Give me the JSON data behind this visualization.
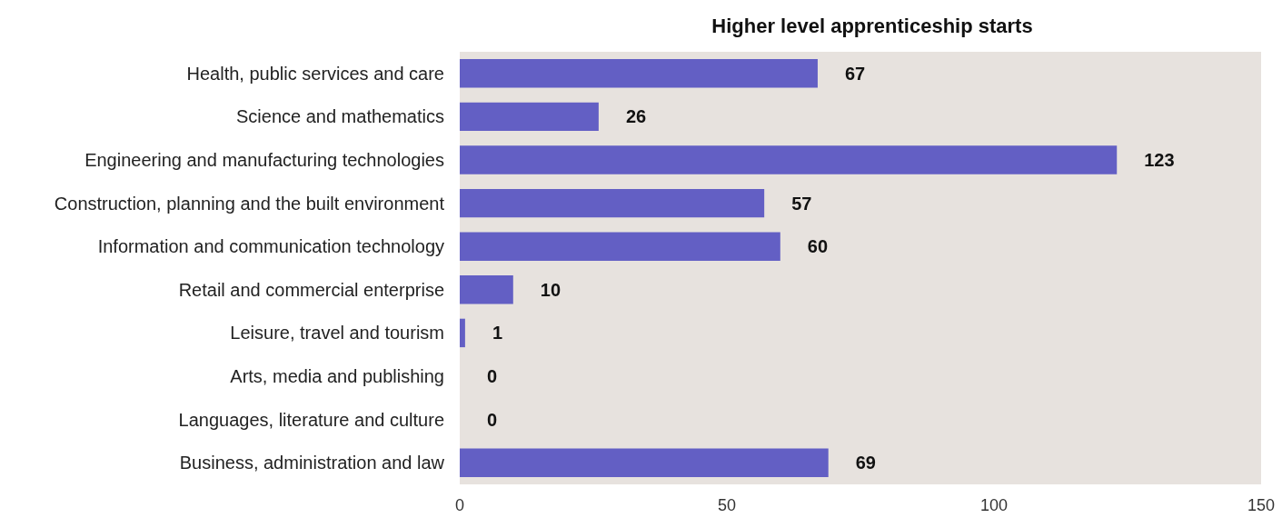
{
  "chart_data": {
    "type": "bar",
    "orientation": "horizontal",
    "title": "Higher level apprenticeship starts",
    "categories": [
      "Health, public services and care",
      "Science and mathematics",
      "Engineering and manufacturing technologies",
      "Construction, planning and the built environment",
      "Information and communication technology",
      "Retail and commercial enterprise",
      "Leisure, travel and tourism",
      "Arts, media and publishing",
      "Languages, literature and culture",
      "Business, administration and law"
    ],
    "values": [
      67,
      26,
      123,
      57,
      60,
      10,
      1,
      0,
      0,
      69
    ],
    "color": "#635fc4",
    "xlim": [
      0,
      150
    ],
    "xticks": [
      0,
      50,
      100,
      150
    ],
    "grid": false,
    "data_labels": true
  }
}
